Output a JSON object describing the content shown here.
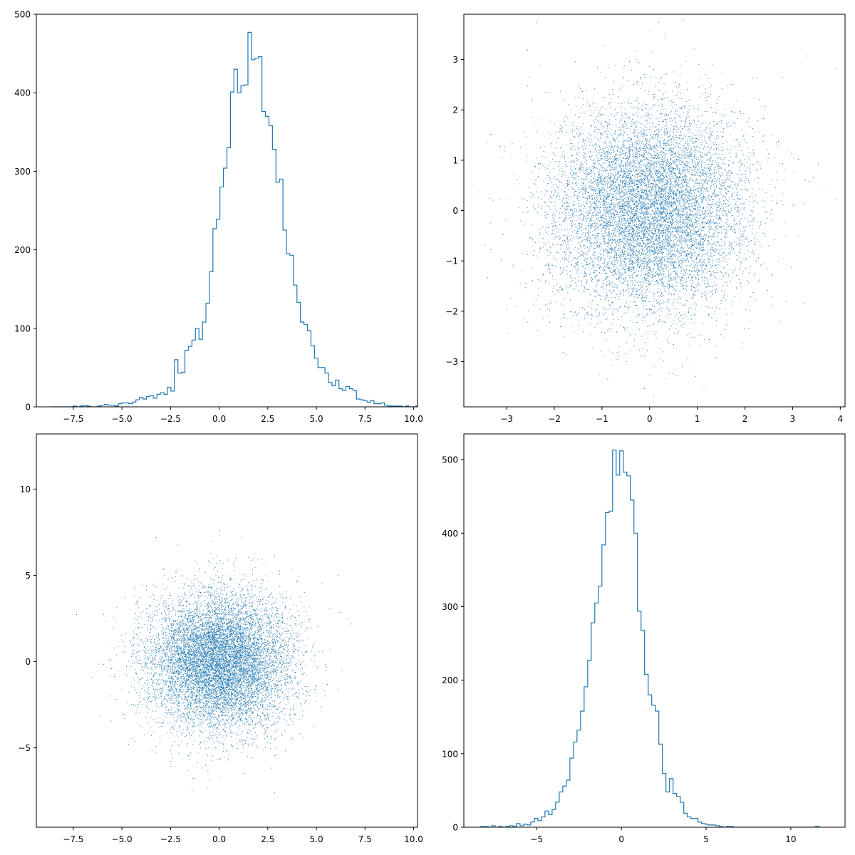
{
  "colors": {
    "series": "#1f77b4",
    "axes": "#000000",
    "background": "#ffffff"
  },
  "chart_data": [
    {
      "type": "histogram",
      "position": "top-left",
      "xlim": [
        -9.4,
        10.2
      ],
      "ylim": [
        0,
        500
      ],
      "x_ticks": [
        -7.5,
        -5.0,
        -2.5,
        0.0,
        2.5,
        5.0,
        7.5,
        10.0
      ],
      "x_tick_labels": [
        "−7.5",
        "−5.0",
        "−2.5",
        "0.0",
        "2.5",
        "5.0",
        "7.5",
        "10.0"
      ],
      "y_ticks": [
        0,
        100,
        200,
        300,
        400,
        500
      ],
      "y_tick_labels": [
        "0",
        "100",
        "200",
        "300",
        "400",
        "500"
      ],
      "bin_start": -8.6,
      "bin_width": 0.18,
      "counts": [
        0,
        0,
        0,
        0,
        0,
        0,
        1,
        0,
        1,
        2,
        1,
        0,
        0,
        1,
        2,
        3,
        2,
        2,
        1,
        4,
        5,
        5,
        4,
        6,
        9,
        12,
        10,
        13,
        14,
        11,
        16,
        18,
        16,
        25,
        20,
        60,
        43,
        44,
        72,
        77,
        85,
        100,
        86,
        108,
        132,
        172,
        227,
        239,
        280,
        304,
        330,
        401,
        430,
        400,
        409,
        410,
        477,
        442,
        444,
        446,
        376,
        370,
        358,
        328,
        286,
        290,
        225,
        195,
        193,
        155,
        133,
        108,
        105,
        97,
        78,
        62,
        50,
        50,
        43,
        31,
        27,
        34,
        23,
        21,
        26,
        23,
        21,
        10,
        9,
        8,
        6,
        8,
        4,
        4,
        5,
        2,
        1,
        1,
        1,
        1,
        0,
        1,
        0,
        0,
        1,
        0,
        0,
        0,
        0,
        0,
        0,
        0,
        0,
        1,
        0
      ]
    },
    {
      "type": "scatter",
      "position": "top-right",
      "xlim": [
        -3.9,
        4.1
      ],
      "ylim": [
        -3.9,
        3.9
      ],
      "x_ticks": [
        -3,
        -2,
        -1,
        0,
        1,
        2,
        3,
        4
      ],
      "x_tick_labels": [
        "−3",
        "−2",
        "−1",
        "0",
        "1",
        "2",
        "3",
        "4"
      ],
      "y_ticks": [
        -3,
        -2,
        -1,
        0,
        1,
        2,
        3
      ],
      "y_tick_labels": [
        "−3",
        "−2",
        "−1",
        "0",
        "1",
        "2",
        "3"
      ],
      "points": 10000,
      "x_mean": 0,
      "x_std": 1,
      "y_mean": 0,
      "y_std": 1
    },
    {
      "type": "scatter",
      "position": "bottom-left",
      "xlim": [
        -9.4,
        10.2
      ],
      "ylim": [
        -9.6,
        13.2
      ],
      "x_ticks": [
        -7.5,
        -5.0,
        -2.5,
        0.0,
        2.5,
        5.0,
        7.5,
        10.0
      ],
      "x_tick_labels": [
        "−7.5",
        "−5.0",
        "−2.5",
        "0.0",
        "2.5",
        "5.0",
        "7.5",
        "10.0"
      ],
      "y_ticks": [
        -5,
        0,
        5,
        10
      ],
      "y_tick_labels": [
        "−5",
        "0",
        "5",
        "10"
      ],
      "points": 10000,
      "x_mean": 0,
      "x_std": 1.8,
      "y_mean": 0,
      "y_std": 2.0
    },
    {
      "type": "histogram",
      "position": "bottom-right",
      "xlim": [
        -9.3,
        13.2
      ],
      "ylim": [
        0,
        535
      ],
      "x_ticks": [
        -5,
        0,
        5,
        10
      ],
      "x_tick_labels": [
        "−5",
        "0",
        "5",
        "10"
      ],
      "y_ticks": [
        0,
        100,
        200,
        300,
        400,
        500
      ],
      "y_tick_labels": [
        "0",
        "100",
        "200",
        "300",
        "400",
        "500"
      ],
      "bin_start": -8.5,
      "bin_width": 0.21,
      "counts": [
        0,
        1,
        1,
        0,
        2,
        0,
        1,
        0,
        1,
        2,
        1,
        5,
        2,
        4,
        3,
        7,
        12,
        9,
        14,
        22,
        17,
        24,
        34,
        48,
        56,
        64,
        94,
        116,
        132,
        158,
        191,
        227,
        278,
        305,
        328,
        384,
        428,
        430,
        513,
        479,
        512,
        483,
        478,
        445,
        400,
        294,
        268,
        208,
        180,
        166,
        158,
        113,
        73,
        48,
        66,
        46,
        42,
        34,
        19,
        14,
        12,
        12,
        7,
        5,
        4,
        3,
        3,
        2,
        1,
        0,
        1,
        1,
        0,
        0,
        0,
        0,
        0,
        0,
        0,
        0,
        0,
        0,
        0,
        0,
        0,
        0,
        0,
        0,
        0,
        0,
        0,
        0,
        0,
        0,
        0,
        1,
        0
      ]
    }
  ]
}
